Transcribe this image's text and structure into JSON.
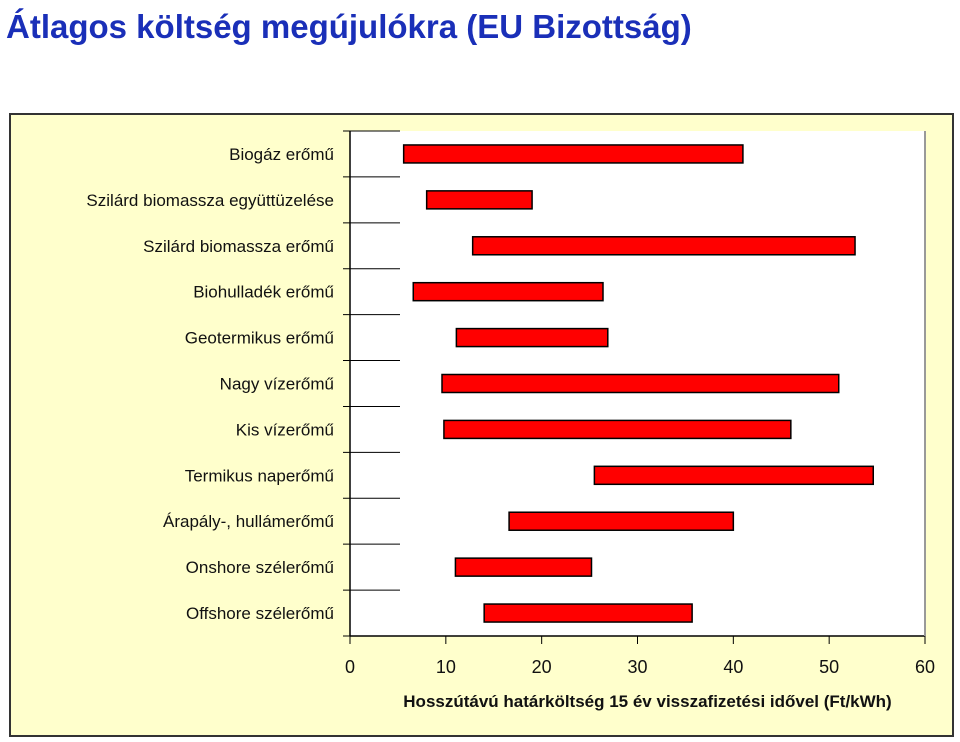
{
  "title": "Átlagos költség megújulókra (EU Bizottság)",
  "chart_data": {
    "type": "bar",
    "orientation": "horizontal-range",
    "title": "Átlagos költség megújulókra (EU Bizottság)",
    "xlabel": "Hosszútávú határköltség 15 év visszafizetési idővel (Ft/kWh)",
    "ylabel": "",
    "xlim": [
      0,
      60
    ],
    "xticks": [
      0,
      10,
      20,
      30,
      40,
      50,
      60
    ],
    "grid": false,
    "colors": {
      "bar_fill": "#ff0000",
      "bar_stroke": "#000000",
      "plot_background": "#ffffff",
      "panel_background": "#ffffcc",
      "title": "#1a2fb8"
    },
    "categories": [
      "Biogáz erőmű",
      "Szilárd biomassza együttüzelése",
      "Szilárd biomassza erőmű",
      "Biohulladék erőmű",
      "Geotermikus erőmű",
      "Nagy vízerőmű",
      "Kis vízerőmű",
      "Termikus naperőmű",
      "Árapály-, hullámerőmű",
      "Onshore szélerőmű",
      "Offshore szélerőmű"
    ],
    "ranges": [
      [
        5.6,
        41.0
      ],
      [
        8.0,
        19.0
      ],
      [
        12.8,
        52.7
      ],
      [
        6.6,
        26.4
      ],
      [
        11.1,
        26.9
      ],
      [
        9.6,
        51.0
      ],
      [
        9.8,
        46.0
      ],
      [
        25.5,
        54.6
      ],
      [
        16.6,
        40.0
      ],
      [
        11.0,
        25.2
      ],
      [
        14.0,
        35.7
      ]
    ]
  }
}
